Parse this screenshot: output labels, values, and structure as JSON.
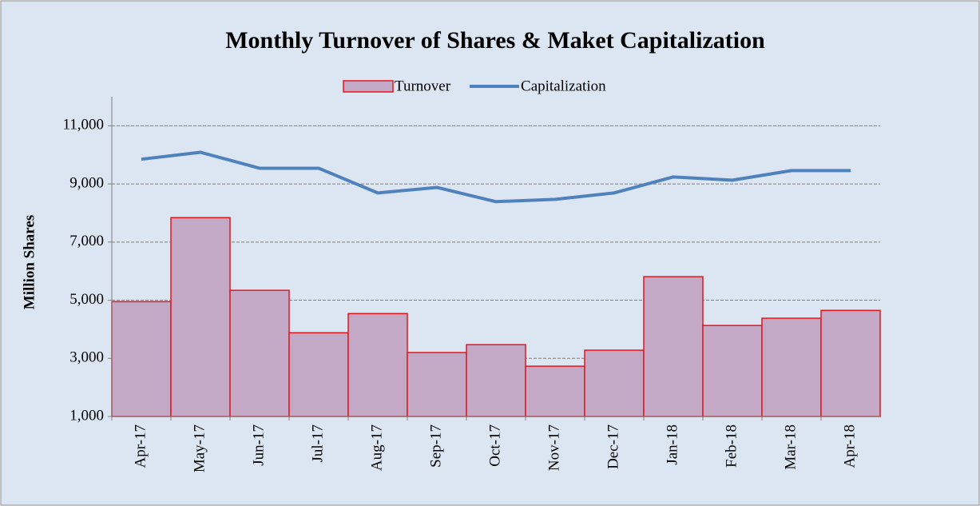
{
  "chart_data": {
    "type": "bar-line",
    "title": "Monthly Turnover of Shares & Maket Capitalization",
    "y_label": "Million Shares",
    "categories": [
      "Apr-17",
      "May-17",
      "Jun-17",
      "Jul-17",
      "Aug-17",
      "Sep-17",
      "Oct-17",
      "Nov-17",
      "Dec-17",
      "Jan-18",
      "Feb-18",
      "Mar-18",
      "Apr-18"
    ],
    "series": [
      {
        "name": "Turnover",
        "type": "bar",
        "color": "#c3a9c6",
        "edge_color": "#e8151b",
        "values": [
          4950,
          7840,
          5340,
          3880,
          4540,
          3200,
          3470,
          2730,
          3280,
          5810,
          4130,
          4380,
          4650
        ]
      },
      {
        "name": "Capitalization",
        "type": "line",
        "color": "#4f81bd",
        "values": [
          9850,
          10090,
          9540,
          9540,
          8690,
          8880,
          8390,
          8470,
          8690,
          9240,
          9130,
          9460,
          9460
        ]
      }
    ],
    "ylim": [
      1000,
      12000
    ],
    "yticks": [
      {
        "value": 1000,
        "label": "1,000"
      },
      {
        "value": 3000,
        "label": "3,000"
      },
      {
        "value": 5000,
        "label": "5,000"
      },
      {
        "value": 7000,
        "label": "7,000"
      },
      {
        "value": 9000,
        "label": "9,000"
      },
      {
        "value": 11000,
        "label": "11,000"
      }
    ],
    "grid": true,
    "legend": "top"
  }
}
